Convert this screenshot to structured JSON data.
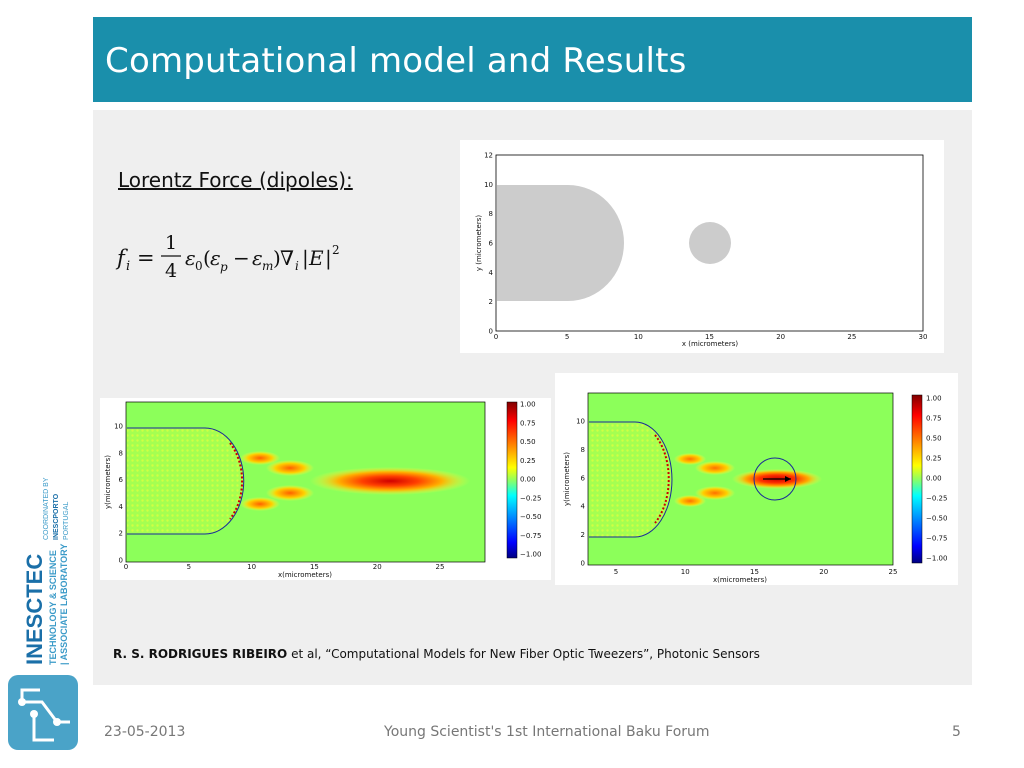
{
  "slide": {
    "title": "Computational model and Results",
    "section_heading": "Lorentz Force (dipoles):",
    "citation_author": "R. S. RODRIGUES RIBEIRO",
    "citation_rest": " et al,  “Computational  Models for New Fiber  Optic Tweezers”, Photonic  Sensors"
  },
  "footer": {
    "date": "23-05-2013",
    "event": "Young Scientist's 1st International Baku Forum",
    "page": "5"
  },
  "logo": {
    "name": "INESCTEC",
    "line1": "TECHNOLOGY & SCIENCE",
    "line2": "| ASSOCIATE LABORATORY",
    "coord1": "COORDINATED BY",
    "coord2": "INESCPORTO",
    "coord3": "PORTUGAL"
  },
  "colors": {
    "header": "#1a8fab",
    "content_bg": "#efefef",
    "field_bg": "#8cff5a"
  },
  "figures": {
    "geometry": {
      "xlabel": "x (micrometers)",
      "ylabel": "y (micrometers)",
      "xticks": [
        "0",
        "5",
        "10",
        "15",
        "20",
        "25",
        "30"
      ],
      "yticks": [
        "0",
        "2",
        "4",
        "6",
        "8",
        "10",
        "12"
      ]
    },
    "field_left": {
      "xlabel": "x(micrometers)",
      "ylabel": "y(micrometers)",
      "xticks": [
        "0",
        "5",
        "10",
        "15",
        "20",
        "25"
      ],
      "yticks": [
        "0",
        "2",
        "4",
        "6",
        "8",
        "10"
      ],
      "colorbar": [
        "1.00",
        "0.75",
        "0.50",
        "0.25",
        "0.00",
        "−0.25",
        "−0.50",
        "−0.75",
        "−1.00"
      ]
    },
    "field_right": {
      "xlabel": "x(micrometers)",
      "ylabel": "y(micrometers)",
      "xticks": [
        "5",
        "10",
        "15",
        "20",
        "25"
      ],
      "yticks": [
        "0",
        "2",
        "4",
        "6",
        "8",
        "10"
      ],
      "colorbar": [
        "1.00",
        "0.75",
        "0.50",
        "0.25",
        "0.00",
        "−0.25",
        "−0.50",
        "−0.75",
        "−1.00"
      ]
    }
  }
}
